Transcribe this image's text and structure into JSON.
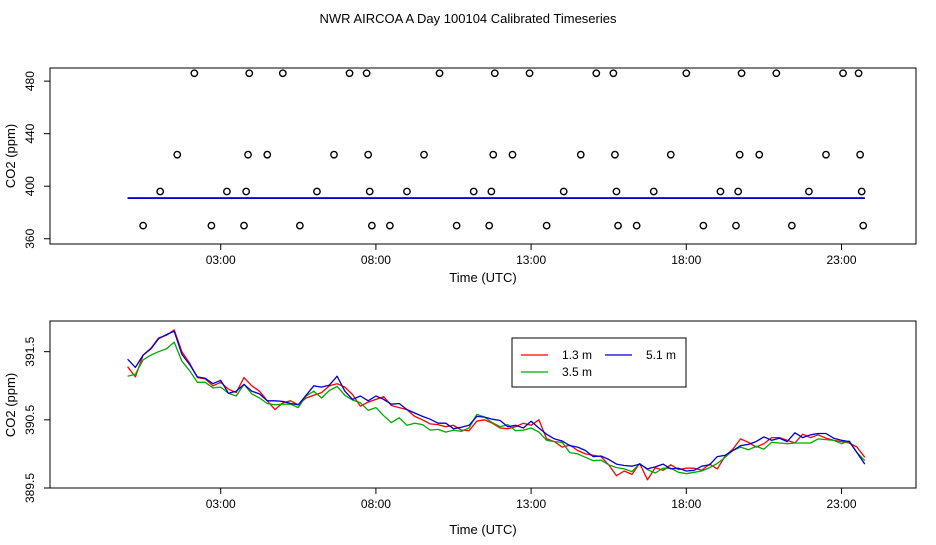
{
  "figure_title": "NWR AIRCOA A  Day 100104  Calibrated Timeseries",
  "chart_data": [
    {
      "type": "scatter",
      "panel": "top",
      "xlabel": "Time (UTC)",
      "ylabel": "CO2 (ppm)",
      "xlim": [
        -2.5,
        25.4
      ],
      "ylim": [
        356,
        490
      ],
      "x_ticks": [
        3,
        8,
        13,
        18,
        23
      ],
      "x_tick_labels": [
        "03:00",
        "08:00",
        "13:00",
        "18:00",
        "23:00"
      ],
      "y_ticks": [
        360,
        400,
        440,
        480
      ],
      "y_tick_labels": [
        "360",
        "400",
        "440",
        "480"
      ],
      "calibration_points": [
        {
          "t": 0.5,
          "v": 370
        },
        {
          "t": 1.05,
          "v": 396
        },
        {
          "t": 1.6,
          "v": 424
        },
        {
          "t": 2.15,
          "v": 486
        },
        {
          "t": 2.7,
          "v": 370
        },
        {
          "t": 3.2,
          "v": 396
        },
        {
          "t": 3.75,
          "v": 370
        },
        {
          "t": 3.82,
          "v": 396
        },
        {
          "t": 3.88,
          "v": 424
        },
        {
          "t": 3.92,
          "v": 486
        },
        {
          "t": 4.5,
          "v": 424
        },
        {
          "t": 5.0,
          "v": 486
        },
        {
          "t": 5.55,
          "v": 370
        },
        {
          "t": 6.1,
          "v": 396
        },
        {
          "t": 6.65,
          "v": 424
        },
        {
          "t": 7.15,
          "v": 486
        },
        {
          "t": 7.7,
          "v": 486
        },
        {
          "t": 7.75,
          "v": 424
        },
        {
          "t": 7.8,
          "v": 396
        },
        {
          "t": 7.87,
          "v": 370
        },
        {
          "t": 8.45,
          "v": 370
        },
        {
          "t": 9.0,
          "v": 396
        },
        {
          "t": 9.55,
          "v": 424
        },
        {
          "t": 10.05,
          "v": 486
        },
        {
          "t": 10.6,
          "v": 370
        },
        {
          "t": 11.15,
          "v": 396
        },
        {
          "t": 11.65,
          "v": 370
        },
        {
          "t": 11.72,
          "v": 396
        },
        {
          "t": 11.78,
          "v": 424
        },
        {
          "t": 11.83,
          "v": 486
        },
        {
          "t": 12.4,
          "v": 424
        },
        {
          "t": 12.95,
          "v": 486
        },
        {
          "t": 13.5,
          "v": 370
        },
        {
          "t": 14.05,
          "v": 396
        },
        {
          "t": 14.6,
          "v": 424
        },
        {
          "t": 15.1,
          "v": 486
        },
        {
          "t": 15.65,
          "v": 486
        },
        {
          "t": 15.7,
          "v": 424
        },
        {
          "t": 15.75,
          "v": 396
        },
        {
          "t": 15.8,
          "v": 370
        },
        {
          "t": 16.4,
          "v": 370
        },
        {
          "t": 16.95,
          "v": 396
        },
        {
          "t": 17.5,
          "v": 424
        },
        {
          "t": 18.0,
          "v": 486
        },
        {
          "t": 18.55,
          "v": 370
        },
        {
          "t": 19.1,
          "v": 396
        },
        {
          "t": 19.6,
          "v": 370
        },
        {
          "t": 19.67,
          "v": 396
        },
        {
          "t": 19.72,
          "v": 424
        },
        {
          "t": 19.78,
          "v": 486
        },
        {
          "t": 20.35,
          "v": 424
        },
        {
          "t": 20.9,
          "v": 486
        },
        {
          "t": 21.4,
          "v": 370
        },
        {
          "t": 21.95,
          "v": 396
        },
        {
          "t": 22.5,
          "v": 424
        },
        {
          "t": 23.05,
          "v": 486
        },
        {
          "t": 23.55,
          "v": 486
        },
        {
          "t": 23.6,
          "v": 424
        },
        {
          "t": 23.65,
          "v": 396
        },
        {
          "t": 23.7,
          "v": 370
        }
      ],
      "ambient_level": 391
    },
    {
      "type": "line",
      "panel": "bottom",
      "xlabel": "Time (UTC)",
      "ylabel": "CO2 (ppm)",
      "xlim": [
        -2.5,
        25.4
      ],
      "ylim": [
        389.5,
        391.95
      ],
      "x_ticks": [
        3,
        8,
        13,
        18,
        23
      ],
      "x_tick_labels": [
        "03:00",
        "08:00",
        "13:00",
        "18:00",
        "23:00"
      ],
      "y_ticks": [
        389.5,
        390.5,
        391.5
      ],
      "y_tick_labels": [
        "389.5",
        "390.5",
        "391.5"
      ],
      "legend_position": "top-center",
      "x": [
        0.0,
        0.25,
        0.5,
        0.75,
        1.0,
        1.25,
        1.5,
        1.75,
        2.0,
        2.25,
        2.5,
        2.75,
        3.0,
        3.25,
        3.5,
        3.75,
        4.0,
        4.25,
        4.5,
        4.75,
        5.0,
        5.25,
        5.5,
        5.75,
        6.0,
        6.25,
        6.5,
        6.75,
        7.0,
        7.25,
        7.5,
        7.75,
        8.0,
        8.25,
        8.5,
        8.75,
        9.0,
        9.25,
        9.5,
        9.75,
        10.0,
        10.25,
        10.5,
        10.75,
        11.0,
        11.25,
        11.5,
        11.75,
        12.0,
        12.25,
        12.5,
        12.75,
        13.0,
        13.25,
        13.5,
        13.75,
        14.0,
        14.25,
        14.5,
        14.75,
        15.0,
        15.25,
        15.5,
        15.75,
        16.0,
        16.25,
        16.5,
        16.75,
        17.0,
        17.25,
        17.5,
        17.75,
        18.0,
        18.25,
        18.5,
        18.75,
        19.0,
        19.25,
        19.5,
        19.75,
        20.0,
        20.25,
        20.5,
        20.75,
        21.0,
        21.25,
        21.5,
        21.75,
        22.0,
        22.25,
        22.5,
        22.75,
        23.0,
        23.25,
        23.5,
        23.75
      ],
      "series": [
        {
          "name": "1.3 m",
          "color": "#ff0000",
          "values": [
            391.28,
            391.13,
            391.45,
            391.55,
            391.7,
            391.74,
            391.82,
            391.5,
            391.33,
            391.12,
            391.1,
            391.0,
            391.05,
            390.95,
            390.9,
            391.12,
            391.0,
            390.92,
            390.78,
            390.65,
            390.75,
            390.78,
            390.72,
            390.82,
            390.86,
            390.9,
            391.0,
            391.03,
            390.98,
            390.87,
            390.7,
            390.76,
            390.8,
            390.84,
            390.71,
            390.68,
            390.65,
            390.55,
            390.5,
            390.44,
            390.43,
            390.4,
            390.42,
            390.35,
            390.34,
            390.48,
            390.5,
            390.45,
            390.38,
            390.37,
            390.4,
            390.45,
            390.42,
            390.5,
            390.22,
            390.18,
            390.1,
            390.13,
            390.05,
            390.0,
            389.98,
            389.96,
            389.84,
            389.68,
            389.75,
            389.7,
            389.86,
            389.62,
            389.8,
            389.76,
            389.84,
            389.77,
            389.79,
            389.79,
            389.76,
            389.85,
            389.78,
            389.97,
            390.07,
            390.22,
            390.17,
            390.1,
            390.15,
            390.24,
            390.24,
            390.2,
            390.16,
            390.29,
            390.24,
            390.28,
            390.23,
            390.2,
            390.18,
            390.16,
            390.1,
            389.95
          ]
        },
        {
          "name": "3.5 m",
          "color": "#00aa00",
          "values": [
            391.14,
            391.17,
            391.38,
            391.45,
            391.5,
            391.54,
            391.64,
            391.36,
            391.22,
            391.05,
            391.05,
            390.97,
            390.98,
            390.89,
            390.85,
            391.02,
            390.88,
            390.82,
            390.74,
            390.72,
            390.73,
            390.73,
            390.68,
            390.85,
            390.92,
            390.82,
            390.93,
            390.99,
            390.86,
            390.79,
            390.75,
            390.64,
            390.68,
            390.56,
            390.46,
            390.53,
            390.42,
            390.45,
            390.43,
            390.35,
            390.36,
            390.32,
            390.35,
            390.33,
            390.38,
            390.58,
            390.54,
            390.46,
            390.4,
            390.43,
            390.34,
            390.35,
            390.38,
            390.32,
            390.2,
            390.18,
            390.17,
            390.02,
            390.0,
            389.95,
            389.9,
            389.91,
            389.84,
            389.8,
            389.78,
            389.74,
            389.86,
            389.77,
            389.72,
            389.79,
            389.79,
            389.73,
            389.71,
            389.73,
            389.75,
            389.8,
            389.86,
            389.95,
            390.05,
            390.1,
            390.06,
            390.11,
            390.07,
            390.17,
            390.16,
            390.15,
            390.16,
            390.16,
            390.16,
            390.22,
            390.21,
            390.2,
            390.15,
            390.19,
            390.02,
            389.9
          ]
        },
        {
          "name": "5.1 m",
          "color": "#0000cc",
          "values": [
            391.39,
            391.27,
            391.45,
            391.54,
            391.69,
            391.75,
            391.8,
            391.46,
            391.31,
            391.13,
            391.11,
            391.03,
            391.08,
            390.89,
            390.92,
            391.02,
            390.92,
            390.88,
            390.78,
            390.78,
            390.77,
            390.74,
            390.72,
            390.86,
            391.0,
            390.98,
            391.01,
            391.14,
            390.92,
            390.8,
            390.85,
            390.78,
            390.85,
            390.8,
            390.73,
            390.74,
            390.65,
            390.6,
            390.55,
            390.51,
            390.45,
            390.45,
            390.37,
            390.39,
            390.42,
            390.55,
            390.54,
            390.51,
            390.49,
            390.4,
            390.42,
            390.38,
            390.48,
            390.38,
            390.29,
            390.22,
            390.19,
            390.12,
            390.1,
            390.05,
            389.96,
            389.97,
            389.92,
            389.85,
            389.83,
            389.82,
            389.85,
            389.78,
            389.81,
            389.85,
            389.78,
            389.79,
            389.75,
            389.76,
            389.82,
            389.84,
            389.96,
            389.98,
            390.05,
            390.12,
            390.14,
            390.18,
            390.25,
            390.2,
            390.23,
            390.18,
            390.31,
            390.24,
            390.28,
            390.3,
            390.3,
            390.23,
            390.2,
            390.18,
            390.02,
            389.85
          ]
        }
      ]
    }
  ]
}
